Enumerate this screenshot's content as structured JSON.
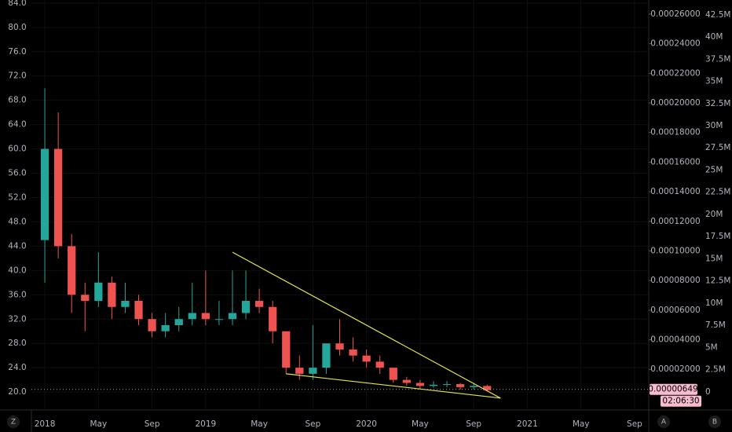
{
  "chart_data": {
    "type": "candlestick",
    "x": [
      "2018-01",
      "2018-02",
      "2018-03",
      "2018-04",
      "2018-05",
      "2018-06",
      "2018-07",
      "2018-08",
      "2018-09",
      "2018-10",
      "2018-11",
      "2018-12",
      "2019-01",
      "2019-02",
      "2019-03",
      "2019-04",
      "2019-05",
      "2019-06",
      "2019-07",
      "2019-08",
      "2019-09",
      "2019-10",
      "2019-11",
      "2019-12",
      "2020-01",
      "2020-02",
      "2020-03",
      "2020-04",
      "2020-05",
      "2020-06",
      "2020-07",
      "2020-08",
      "2020-09",
      "2020-10"
    ],
    "open": [
      45,
      60,
      44,
      36,
      35,
      38,
      34,
      35,
      32,
      30,
      31,
      32,
      33,
      32,
      32,
      33,
      35,
      34,
      30,
      24,
      23,
      24,
      28,
      27,
      26,
      25,
      24,
      22,
      21.5,
      21,
      21.2,
      21.3,
      20.8,
      21
    ],
    "high": [
      70,
      66,
      46,
      38,
      43,
      39,
      38,
      36,
      33,
      33,
      34,
      38,
      40,
      35,
      40,
      40,
      37,
      35,
      30,
      26,
      31,
      28,
      32,
      29,
      27,
      26,
      24,
      22.5,
      22,
      21.8,
      21.8,
      21.5,
      21.5,
      21.2
    ],
    "low": [
      38,
      42,
      33,
      30,
      34,
      32,
      33,
      31,
      29,
      29,
      30,
      31,
      31,
      31,
      31,
      32,
      33,
      28,
      23,
      22,
      22,
      23,
      26,
      25,
      24,
      23,
      21.5,
      21,
      20.5,
      20.7,
      20.8,
      20.4,
      20.4,
      20.2
    ],
    "close": [
      60,
      44,
      36,
      35,
      38,
      34,
      35,
      32,
      30,
      31,
      32,
      33,
      32,
      32,
      33,
      35,
      34,
      30,
      24,
      23,
      24,
      28,
      27,
      26,
      25,
      24,
      22,
      21.5,
      21,
      21.2,
      21.3,
      20.8,
      21,
      20.3
    ],
    "up_color": "#26a69a",
    "down_color": "#ef5350",
    "xlim": [
      "2017-12",
      "2021-10"
    ],
    "xticks": [
      {
        "value": "2018-01",
        "label": "2018"
      },
      {
        "value": "2018-05",
        "label": "May"
      },
      {
        "value": "2018-09",
        "label": "Sep"
      },
      {
        "value": "2019-01",
        "label": "2019"
      },
      {
        "value": "2019-05",
        "label": "May"
      },
      {
        "value": "2019-09",
        "label": "Sep"
      },
      {
        "value": "2020-01",
        "label": "2020"
      },
      {
        "value": "2020-05",
        "label": "May"
      },
      {
        "value": "2020-09",
        "label": "Sep"
      },
      {
        "value": "2021-01",
        "label": "2021"
      },
      {
        "value": "2021-05",
        "label": "May"
      },
      {
        "value": "2021-09",
        "label": "Sep"
      }
    ],
    "ylim": [
      17.3,
      84.5
    ],
    "yticks": [
      {
        "value": 20,
        "label": "20.0"
      },
      {
        "value": 24,
        "label": "24.0"
      },
      {
        "value": 28,
        "label": "28.0"
      },
      {
        "value": 32,
        "label": "32.0"
      },
      {
        "value": 36,
        "label": "36.0"
      },
      {
        "value": 40,
        "label": "40.0"
      },
      {
        "value": 44,
        "label": "44.0"
      },
      {
        "value": 48,
        "label": "48.0"
      },
      {
        "value": 52,
        "label": "52.0"
      },
      {
        "value": 56,
        "label": "56.0"
      },
      {
        "value": 60,
        "label": "60.0"
      },
      {
        "value": 64,
        "label": "64.0"
      },
      {
        "value": 68,
        "label": "68.0"
      },
      {
        "value": 72,
        "label": "72.0"
      },
      {
        "value": 76,
        "label": "76.0"
      },
      {
        "value": 80,
        "label": "80.0"
      },
      {
        "value": 84,
        "label": "84.0"
      }
    ],
    "y2lim": [
      -6.4e-06,
      0.0002695
    ],
    "y2ticks": [
      {
        "value": 2e-05,
        "label": "0.00002000"
      },
      {
        "value": 4e-05,
        "label": "0.00004000"
      },
      {
        "value": 6e-05,
        "label": "0.00006000"
      },
      {
        "value": 8e-05,
        "label": "0.00008000"
      },
      {
        "value": 0.0001,
        "label": "0.00010000"
      },
      {
        "value": 0.00012,
        "label": "0.00012000"
      },
      {
        "value": 0.00014,
        "label": "0.00014000"
      },
      {
        "value": 0.00016,
        "label": "0.00016000"
      },
      {
        "value": 0.00018,
        "label": "0.00018000"
      },
      {
        "value": 0.0002,
        "label": "0.00020000"
      },
      {
        "value": 0.00022,
        "label": "0.00022000"
      },
      {
        "value": 0.00024,
        "label": "0.00024000"
      },
      {
        "value": 0.00026,
        "label": "0.00026000"
      }
    ],
    "volume_lim": [
      -1860000,
      44160000
    ],
    "volume_ticks": [
      0,
      {
        "value": 2500000,
        "label": "2.5M"
      },
      {
        "value": 5000000,
        "label": "5M"
      },
      {
        "value": 7500000,
        "label": "7.5M"
      },
      {
        "value": 10000000,
        "label": "10M"
      },
      {
        "value": 12500000,
        "label": "12.5M"
      },
      {
        "value": 15000000,
        "label": "15M"
      },
      {
        "value": 17500000,
        "label": "17.5M"
      },
      {
        "value": 20000000,
        "label": "20M"
      },
      {
        "value": 22500000,
        "label": "22.5M"
      },
      {
        "value": 25000000,
        "label": "25M"
      },
      {
        "value": 27500000,
        "label": "27.5M"
      },
      {
        "value": 30000000,
        "label": "30M"
      },
      {
        "value": 32500000,
        "label": "32.5M"
      },
      {
        "value": 35000000,
        "label": "35M"
      },
      {
        "value": 37500000,
        "label": "37.5M"
      },
      {
        "value": 40000000,
        "label": "40M"
      },
      {
        "value": 42500000,
        "label": "42.5M"
      }
    ],
    "trendlines": [
      {
        "x": [
          "2019-03",
          "2020-11"
        ],
        "y": [
          43,
          19
        ]
      },
      {
        "x": [
          "2019-07",
          "2020-11"
        ],
        "y": [
          23,
          19
        ]
      }
    ],
    "trendline_color": "#e6e64d",
    "last_price": {
      "value": 6.49e-06,
      "label": "0.00000649"
    },
    "countdown": "02:06:30"
  },
  "toolbar": {
    "left": "Z",
    "right": [
      "A",
      "B"
    ]
  }
}
